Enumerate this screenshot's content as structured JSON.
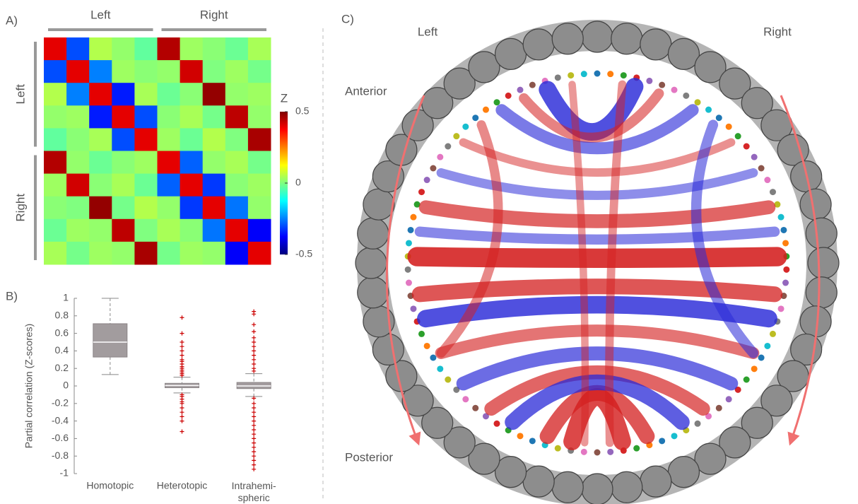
{
  "chart_data": [
    {
      "type": "heatmap",
      "panel": "A)",
      "x_groups": [
        "Left",
        "Right"
      ],
      "y_groups": [
        "Left",
        "Right"
      ],
      "colorbar_label": "Z",
      "clim": [
        -0.5,
        0.5
      ],
      "cticks": [
        0.5,
        0,
        -0.5
      ],
      "colormap": "jet",
      "matrix": [
        [
          0.4,
          -0.3,
          0.05,
          0.02,
          -0.03,
          0.45,
          0.03,
          0.01,
          -0.02,
          0.04
        ],
        [
          -0.3,
          0.4,
          -0.25,
          0.03,
          0.01,
          0.02,
          0.42,
          0.0,
          0.03,
          -0.01
        ],
        [
          0.05,
          -0.25,
          0.4,
          -0.35,
          0.04,
          -0.02,
          0.01,
          0.48,
          0.02,
          0.03
        ],
        [
          0.02,
          0.03,
          -0.35,
          0.4,
          -0.3,
          0.01,
          0.04,
          -0.01,
          0.44,
          0.02
        ],
        [
          -0.03,
          0.01,
          0.04,
          -0.3,
          0.4,
          0.03,
          -0.02,
          0.05,
          0.0,
          0.46
        ],
        [
          0.45,
          0.02,
          -0.02,
          0.01,
          0.03,
          0.4,
          -0.28,
          0.02,
          0.04,
          -0.01
        ],
        [
          0.03,
          0.42,
          0.01,
          0.04,
          -0.02,
          -0.28,
          0.4,
          -0.32,
          0.01,
          0.03
        ],
        [
          0.01,
          0.0,
          0.48,
          -0.01,
          0.05,
          0.02,
          -0.32,
          0.4,
          -0.26,
          0.02
        ],
        [
          -0.02,
          0.03,
          0.02,
          0.44,
          0.0,
          0.04,
          0.01,
          -0.26,
          0.4,
          -0.38
        ],
        [
          0.04,
          -0.01,
          0.03,
          0.02,
          0.46,
          -0.01,
          0.03,
          0.02,
          -0.38,
          0.4
        ]
      ]
    },
    {
      "type": "box",
      "panel": "B)",
      "ylabel": "Partial correlation (Z-scores)",
      "categories": [
        "Homotopic",
        "Heterotopic",
        "Intrahemi-spheric"
      ],
      "ylim": [
        -1,
        1
      ],
      "yticks": [
        -1,
        -0.8,
        -0.6,
        -0.4,
        -0.2,
        0,
        0.2,
        0.4,
        0.6,
        0.8,
        1
      ],
      "color": "#a29c9e",
      "outlier_color": "#cc0000",
      "boxes": [
        {
          "min": 0.13,
          "q1": 0.33,
          "median": 0.5,
          "q3": 0.71,
          "max": 1.0,
          "outliers": []
        },
        {
          "min": -0.08,
          "q1": -0.02,
          "median": 0.005,
          "q3": 0.03,
          "max": 0.1,
          "outliers": [
            0.78,
            0.6,
            0.5,
            0.45,
            0.4,
            0.35,
            0.3,
            0.28,
            0.25,
            0.22,
            0.2,
            0.18,
            0.16,
            0.14,
            0.12,
            -0.1,
            -0.12,
            -0.15,
            -0.18,
            -0.2,
            -0.25,
            -0.3,
            -0.35,
            -0.4,
            -0.52
          ]
        },
        {
          "min": -0.12,
          "q1": -0.03,
          "median": 0.0,
          "q3": 0.04,
          "max": 0.14,
          "outliers": [
            0.85,
            0.82,
            0.7,
            0.62,
            0.55,
            0.5,
            0.45,
            0.4,
            0.35,
            0.3,
            0.25,
            0.2,
            0.17,
            -0.14,
            -0.2,
            -0.25,
            -0.3,
            -0.35,
            -0.4,
            -0.45,
            -0.5,
            -0.55,
            -0.6,
            -0.65,
            -0.7,
            -0.75,
            -0.8,
            -0.85,
            -0.9,
            -0.95
          ]
        }
      ]
    },
    {
      "type": "chord",
      "panel": "C)",
      "left_label": "Left",
      "right_label": "Right",
      "anterior_label": "Anterior",
      "posterior_label": "Posterior",
      "positive_color": "#d42020",
      "negative_color": "#2a2ad8",
      "links": [
        {
          "source": 22,
          "target": 68,
          "value": 0.9
        },
        {
          "source": 25,
          "target": 65,
          "value": 0.7
        },
        {
          "source": 27,
          "target": 63,
          "value": -0.8
        },
        {
          "source": 43,
          "target": 47,
          "value": 0.8
        },
        {
          "source": 41,
          "target": 49,
          "value": 0.7
        },
        {
          "source": 3,
          "target": 86,
          "value": -0.8
        },
        {
          "source": 5,
          "target": 84,
          "value": 0.4
        },
        {
          "source": 8,
          "target": 82,
          "value": -0.5
        },
        {
          "source": 18,
          "target": 72,
          "value": 0.6
        },
        {
          "source": 20,
          "target": 70,
          "value": -0.4
        },
        {
          "source": 30,
          "target": 60,
          "value": 0.5
        },
        {
          "source": 33,
          "target": 57,
          "value": -0.6
        },
        {
          "source": 36,
          "target": 54,
          "value": 0.6
        },
        {
          "source": 38,
          "target": 52,
          "value": -0.7
        },
        {
          "source": 12,
          "target": 78,
          "value": 0.3
        },
        {
          "source": 15,
          "target": 75,
          "value": -0.35
        },
        {
          "source": 10,
          "target": 30,
          "value": -0.4
        },
        {
          "source": 60,
          "target": 80,
          "value": 0.35
        },
        {
          "source": 2,
          "target": 44,
          "value": 0.3
        },
        {
          "source": 46,
          "target": 88,
          "value": 0.25
        }
      ]
    }
  ]
}
